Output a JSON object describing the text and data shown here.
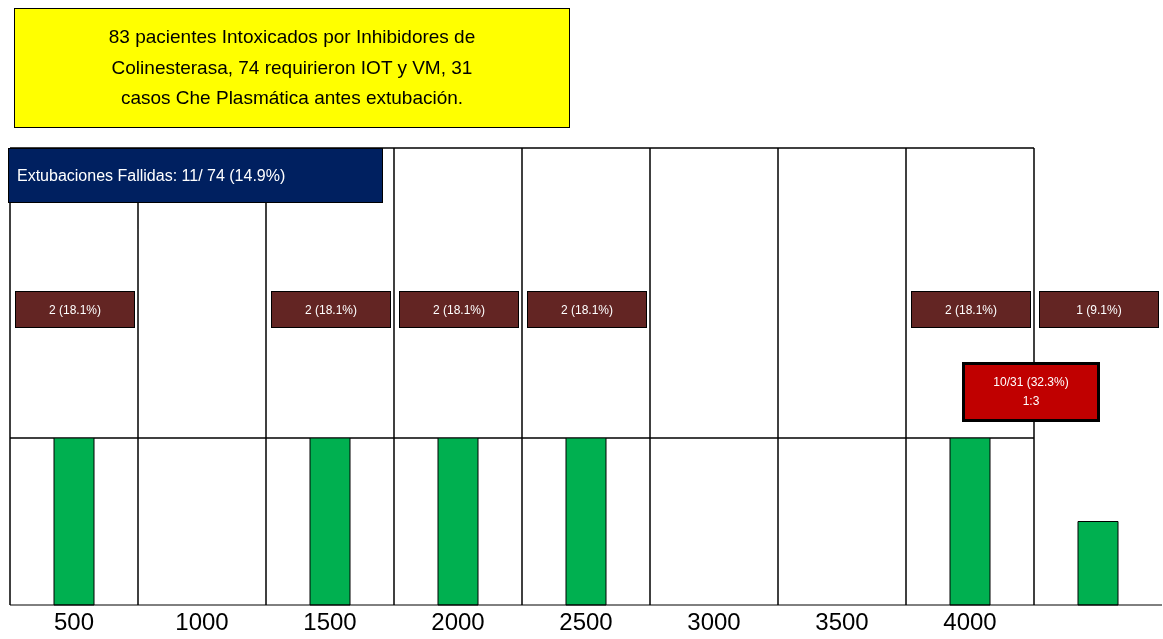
{
  "chart_data": {
    "type": "bar",
    "title": "83 pacientes Intoxicados por Inhibidores de Colinesterasa, 74 requirieron IOT y VM, 31 casos Che Plasmática antes extubación.",
    "subtitle": "Extubaciones Fallidas: 11/ 74 (14.9%)",
    "categories": [
      "500",
      "1000",
      "1500",
      "2000",
      "2500",
      "3000",
      "3500",
      "4000",
      null
    ],
    "values": [
      2,
      null,
      2,
      2,
      2,
      null,
      null,
      2,
      1
    ],
    "value_labels": [
      "2 (18.1%)",
      null,
      "2 (18.1%)",
      "2 (18.1%)",
      "2 (18.1%)",
      null,
      null,
      "2 (18.1%)",
      "1 (9.1%)"
    ],
    "color": "#00b050",
    "grid": "x",
    "annotations": [
      "10/31 (32.3%)\n1:3"
    ]
  }
}
